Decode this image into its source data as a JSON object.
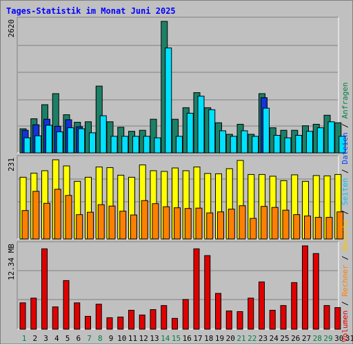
{
  "title": "Tages-Statistik im Monat Juni 2025",
  "chart_data": [
    {
      "type": "bar",
      "panel": "top",
      "ymax_label": "2620",
      "ymax": 2620,
      "categories": [
        "1",
        "2",
        "3",
        "4",
        "5",
        "6",
        "7",
        "8",
        "9",
        "10",
        "11",
        "12",
        "13",
        "14",
        "15",
        "16",
        "17",
        "18",
        "19",
        "20",
        "21",
        "22",
        "23",
        "24",
        "25",
        "26",
        "27",
        "28",
        "29",
        "30",
        "31"
      ],
      "series": [
        {
          "name": "Anfragen",
          "color": "#1d7f66",
          "values": [
            480,
            680,
            960,
            1180,
            760,
            610,
            620,
            1330,
            620,
            510,
            430,
            450,
            670,
            2620,
            670,
            900,
            1200,
            900,
            600,
            370,
            570,
            370,
            1180,
            500,
            450,
            450,
            540,
            570,
            750,
            600,
            null
          ]
        },
        {
          "name": "Dateien",
          "color": "#1234d8",
          "values": [
            450,
            560,
            670,
            530,
            660,
            520,
            null,
            null,
            null,
            null,
            null,
            null,
            null,
            null,
            null,
            null,
            null,
            null,
            null,
            null,
            null,
            null,
            1100,
            null,
            null,
            null,
            null,
            null,
            null,
            null,
            null
          ]
        },
        {
          "name": "Seiten",
          "color": "#00e0ff",
          "values": [
            300,
            340,
            550,
            420,
            500,
            480,
            400,
            740,
            330,
            330,
            330,
            330,
            300,
            2090,
            330,
            790,
            1130,
            860,
            440,
            330,
            440,
            330,
            890,
            350,
            300,
            350,
            430,
            500,
            620,
            330,
            null
          ]
        }
      ]
    },
    {
      "type": "bar",
      "panel": "middle",
      "ymax_label": "231",
      "ymax": 231,
      "categories": [
        "1",
        "2",
        "3",
        "4",
        "5",
        "6",
        "7",
        "8",
        "9",
        "10",
        "11",
        "12",
        "13",
        "14",
        "15",
        "16",
        "17",
        "18",
        "19",
        "20",
        "21",
        "22",
        "23",
        "24",
        "25",
        "26",
        "27",
        "28",
        "29",
        "30",
        "31"
      ],
      "series": [
        {
          "name": "Besuche",
          "color": "#ffff00",
          "values": [
            180,
            192,
            199,
            231,
            213,
            168,
            180,
            210,
            208,
            186,
            180,
            216,
            199,
            197,
            207,
            199,
            210,
            191,
            190,
            205,
            229,
            188,
            188,
            183,
            170,
            187,
            168,
            185,
            184,
            188,
            null
          ]
        },
        {
          "name": "Rechner",
          "color": "#ff8000",
          "values": [
            83,
            139,
            104,
            145,
            127,
            71,
            78,
            100,
            96,
            81,
            70,
            112,
            103,
            94,
            91,
            89,
            90,
            76,
            79,
            87,
            97,
            60,
            95,
            92,
            84,
            71,
            67,
            63,
            63,
            79,
            null
          ]
        }
      ]
    },
    {
      "type": "bar",
      "panel": "bottom",
      "ymax_label": "12.34 MB",
      "ymax": 12.34,
      "unit": "MB",
      "categories": [
        "1",
        "2",
        "3",
        "4",
        "5",
        "6",
        "7",
        "8",
        "9",
        "10",
        "11",
        "12",
        "13",
        "14",
        "15",
        "16",
        "17",
        "18",
        "19",
        "20",
        "21",
        "22",
        "23",
        "24",
        "25",
        "26",
        "27",
        "28",
        "29",
        "30",
        "31"
      ],
      "series": [
        {
          "name": "Volumen",
          "color": "#e00000",
          "values": [
            3.9,
            4.6,
            11.9,
            3.3,
            7.2,
            3.9,
            1.9,
            3.7,
            1.7,
            1.8,
            2.8,
            2.1,
            2.9,
            3.5,
            1.6,
            4.4,
            11.9,
            10.9,
            5.3,
            2.7,
            2.6,
            4.6,
            7.0,
            2.8,
            3.5,
            6.9,
            12.34,
            11.2,
            3.5,
            3.2,
            null
          ]
        }
      ]
    }
  ],
  "x_labels": [
    {
      "label": "1",
      "color": "#008040"
    },
    {
      "label": "2",
      "color": "#000000"
    },
    {
      "label": "3",
      "color": "#000000"
    },
    {
      "label": "4",
      "color": "#000000"
    },
    {
      "label": "5",
      "color": "#000000"
    },
    {
      "label": "6",
      "color": "#000000"
    },
    {
      "label": "7",
      "color": "#008040"
    },
    {
      "label": "8",
      "color": "#008040"
    },
    {
      "label": "9",
      "color": "#000000"
    },
    {
      "label": "10",
      "color": "#000000"
    },
    {
      "label": "11",
      "color": "#000000"
    },
    {
      "label": "12",
      "color": "#000000"
    },
    {
      "label": "13",
      "color": "#000000"
    },
    {
      "label": "14",
      "color": "#008040"
    },
    {
      "label": "15",
      "color": "#008040"
    },
    {
      "label": "16",
      "color": "#000000"
    },
    {
      "label": "17",
      "color": "#000000"
    },
    {
      "label": "18",
      "color": "#000000"
    },
    {
      "label": "19",
      "color": "#000000"
    },
    {
      "label": "20",
      "color": "#000000"
    },
    {
      "label": "21",
      "color": "#008040"
    },
    {
      "label": "22",
      "color": "#008040"
    },
    {
      "label": "23",
      "color": "#000000"
    },
    {
      "label": "24",
      "color": "#000000"
    },
    {
      "label": "25",
      "color": "#000000"
    },
    {
      "label": "26",
      "color": "#000000"
    },
    {
      "label": "27",
      "color": "#000000"
    },
    {
      "label": "28",
      "color": "#008040"
    },
    {
      "label": "29",
      "color": "#008040"
    },
    {
      "label": "30",
      "color": "#000000"
    },
    {
      "label": "31",
      "color": "#000000"
    }
  ],
  "legend": [
    {
      "label": "Volumen",
      "color": "#e00000"
    },
    {
      "label": "Rechner",
      "color": "#ff8000"
    },
    {
      "label": "Besuche",
      "color": "#ffc000"
    },
    {
      "label": "Seiten",
      "color": "#00c0ff"
    },
    {
      "label": "Dateien",
      "color": "#0040ff"
    },
    {
      "label": "Anfragen",
      "color": "#008040"
    }
  ],
  "legend_separator": " / "
}
